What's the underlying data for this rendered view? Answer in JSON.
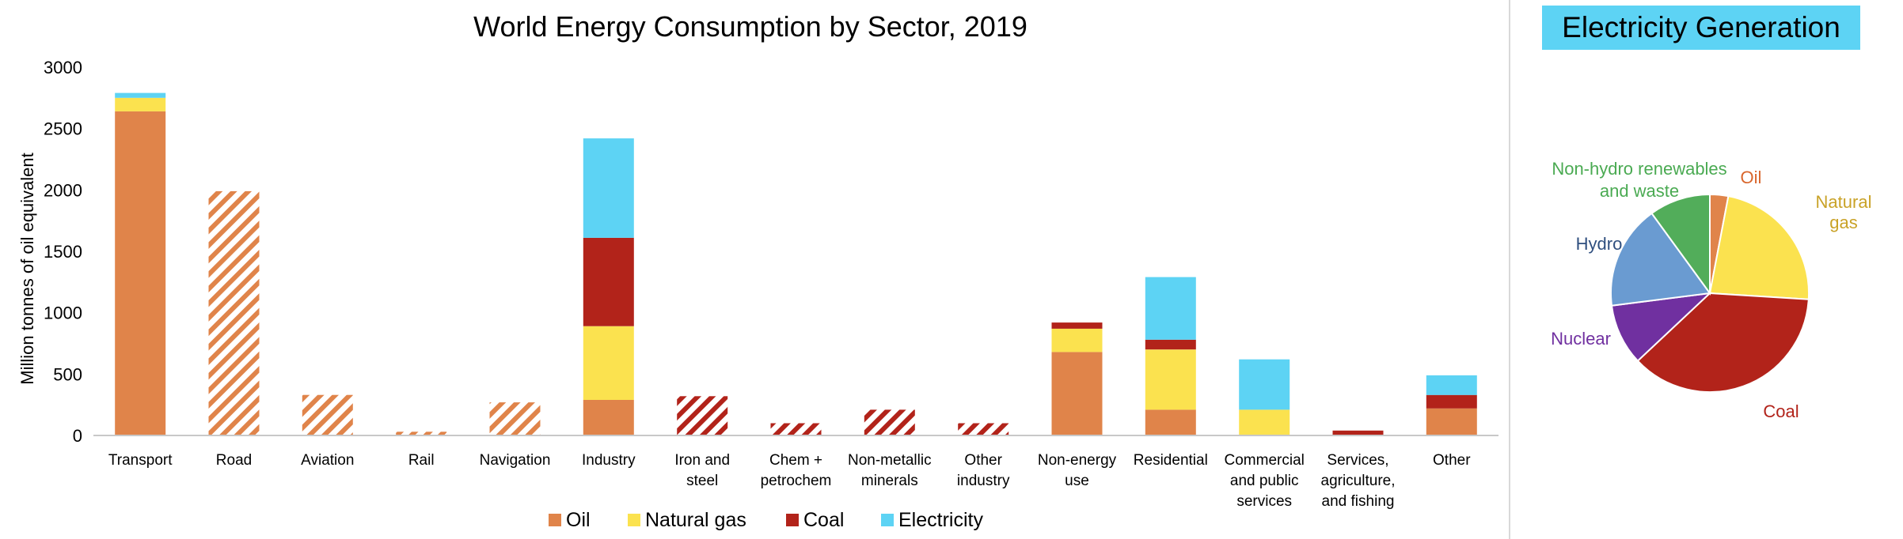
{
  "chart_data": [
    {
      "type": "bar",
      "stacked": true,
      "title": "World Energy Consumption by Sector, 2019",
      "ylabel": "Million tonnes of oil equivalent",
      "ylim": [
        0,
        3000
      ],
      "yticks": [
        0,
        500,
        1000,
        1500,
        2000,
        2500,
        3000
      ],
      "categories": [
        "Transport",
        "Road",
        "Aviation",
        "Rail",
        "Navigation",
        "Industry",
        "Iron and steel",
        "Chem + petrochem",
        "Non-metallic minerals",
        "Other industry",
        "Non-energy use",
        "Residential",
        "Commercial and public services",
        "Services, agriculture, and fishing",
        "Other"
      ],
      "hatched_categories": [
        "Road",
        "Aviation",
        "Rail",
        "Navigation",
        "Iron and steel",
        "Chem + petrochem",
        "Non-metallic minerals",
        "Other industry"
      ],
      "series": [
        {
          "name": "Oil",
          "color": "#e0844a",
          "values": [
            2640,
            1990,
            330,
            30,
            270,
            290,
            0,
            0,
            0,
            0,
            680,
            210,
            0,
            0,
            220
          ]
        },
        {
          "name": "Natural gas",
          "color": "#fbe24f",
          "values": [
            110,
            0,
            0,
            0,
            0,
            600,
            0,
            0,
            0,
            0,
            190,
            490,
            210,
            0,
            0
          ]
        },
        {
          "name": "Coal",
          "color": "#b2231a",
          "values": [
            0,
            0,
            0,
            0,
            0,
            720,
            320,
            100,
            210,
            100,
            50,
            80,
            0,
            40,
            110
          ]
        },
        {
          "name": "Electricity",
          "color": "#5dd3f4",
          "values": [
            40,
            0,
            0,
            0,
            0,
            810,
            0,
            0,
            0,
            0,
            0,
            510,
            410,
            0,
            160
          ]
        }
      ],
      "legend_position": "bottom",
      "grid": false
    },
    {
      "type": "pie",
      "title": "Electricity Generation",
      "slices": [
        {
          "label": "Oil",
          "value": 3,
          "color": "#e0844a",
          "label_color": "#d9662c"
        },
        {
          "label": "Natural gas",
          "value": 23,
          "color": "#fbe24f",
          "label_color": "#c9a227"
        },
        {
          "label": "Coal",
          "value": 37,
          "color": "#b2231a",
          "label_color": "#b2231a"
        },
        {
          "label": "Nuclear",
          "value": 10,
          "color": "#7030a0",
          "label_color": "#7030a0"
        },
        {
          "label": "Hydro",
          "value": 17,
          "color": "#6a9bd1",
          "label_color": "#2f4f7f"
        },
        {
          "label": "Non-hydro renewables and waste",
          "value": 10,
          "color": "#52ad5a",
          "label_color": "#4aaa52"
        }
      ]
    }
  ]
}
